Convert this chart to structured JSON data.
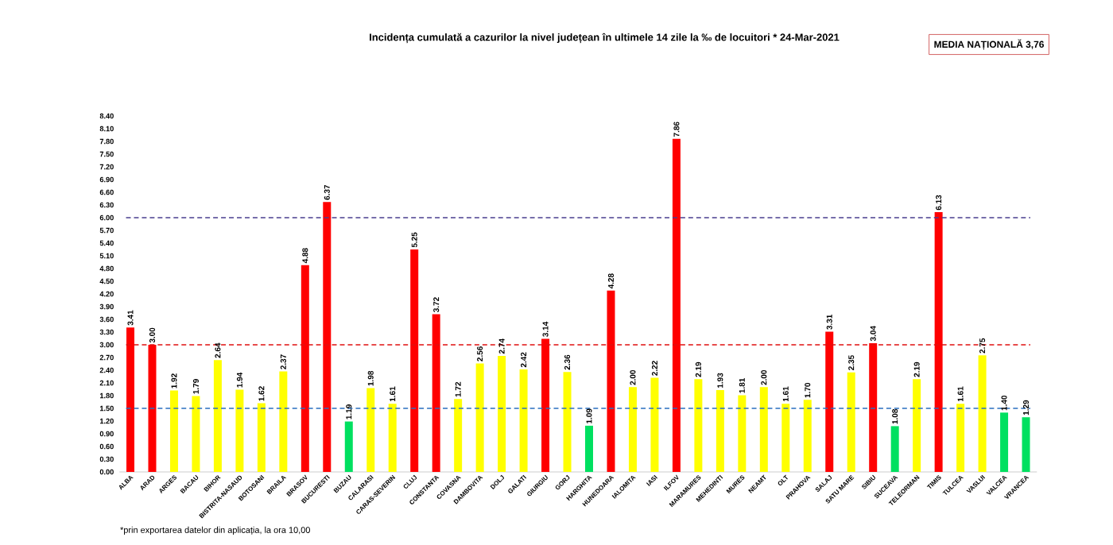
{
  "chart_data": {
    "type": "bar",
    "title": "Incidența cumulată a cazurilor la nivel județean în ultimele 14 zile la ‰ de locuitori *  24-Mar-2021",
    "categories": [
      "ALBA",
      "ARAD",
      "ARGES",
      "BACAU",
      "BIHOR",
      "BISTRITA-NASAUD",
      "BOTOSANI",
      "BRAILA",
      "BRASOV",
      "BUCURESTI",
      "BUZAU",
      "CALARASI",
      "CARAS-SEVERIN",
      "CLUJ",
      "CONSTANTA",
      "COVASNA",
      "DAMBOVITA",
      "DOLJ",
      "GALATI",
      "GIURGIU",
      "GORJ",
      "HARGHITA",
      "HUNEDOARA",
      "IALOMITA",
      "IASI",
      "ILFOV",
      "MARAMURES",
      "MEHEDINTI",
      "MURES",
      "NEAMT",
      "OLT",
      "PRAHOVA",
      "SALAJ",
      "SATU MARE",
      "SIBIU",
      "SUCEAVA",
      "TELEORMAN",
      "TIMIS",
      "TULCEA",
      "VASLUI",
      "VALCEA",
      "VRANCEA"
    ],
    "values": [
      3.41,
      3.0,
      1.92,
      1.79,
      2.64,
      1.94,
      1.62,
      2.37,
      4.88,
      6.37,
      1.19,
      1.98,
      1.61,
      5.25,
      3.72,
      1.72,
      2.56,
      2.74,
      2.42,
      3.14,
      2.36,
      1.09,
      4.28,
      2.0,
      2.22,
      7.86,
      2.19,
      1.93,
      1.81,
      2.0,
      1.61,
      1.7,
      3.31,
      2.35,
      3.04,
      1.08,
      2.19,
      6.13,
      1.61,
      2.75,
      1.4,
      1.29
    ],
    "value_labels": [
      "3.41",
      "3.00",
      "1.92",
      "1.79",
      "2.64",
      "1.94",
      "1.62",
      "2.37",
      "4.88",
      "6.37",
      "1.19",
      "1.98",
      "1.61",
      "5.25",
      "3.72",
      "1.72",
      "2.56",
      "2.74",
      "2.42",
      "3.14",
      "2.36",
      "1.09",
      "4.28",
      "2.00",
      "2.22",
      "7.86",
      "2.19",
      "1.93",
      "1.81",
      "2.00",
      "1.61",
      "1.70",
      "3.31",
      "2.35",
      "3.04",
      "1.08",
      "2.19",
      "6.13",
      "1.61",
      "2.75",
      "1.40",
      "1.29"
    ],
    "colors": [
      "#ff0000",
      "#ff0000",
      "#ffff00",
      "#ffff00",
      "#ffff00",
      "#ffff00",
      "#ffff00",
      "#ffff00",
      "#ff0000",
      "#ff0000",
      "#00e060",
      "#ffff00",
      "#ffff00",
      "#ff0000",
      "#ff0000",
      "#ffff00",
      "#ffff00",
      "#ffff00",
      "#ffff00",
      "#ff0000",
      "#ffff00",
      "#00e060",
      "#ff0000",
      "#ffff00",
      "#ffff00",
      "#ff0000",
      "#ffff00",
      "#ffff00",
      "#ffff00",
      "#ffff00",
      "#ffff00",
      "#ffff00",
      "#ff0000",
      "#ffff00",
      "#ff0000",
      "#00e060",
      "#ffff00",
      "#ff0000",
      "#ffff00",
      "#ffff00",
      "#00e060",
      "#00e060"
    ],
    "ylim": [
      0,
      8.4
    ],
    "yticks": [
      {
        "value": 0,
        "label": "0.00"
      },
      {
        "value": 0.3,
        "label": "0.30"
      },
      {
        "value": 0.6,
        "label": "0.60"
      },
      {
        "value": 0.9,
        "label": "0.90"
      },
      {
        "value": 1.2,
        "label": "1.20"
      },
      {
        "value": 1.5,
        "label": "1.50"
      },
      {
        "value": 1.8,
        "label": "1.80"
      },
      {
        "value": 2.1,
        "label": "2.10"
      },
      {
        "value": 2.4,
        "label": "2.40"
      },
      {
        "value": 2.7,
        "label": "2.70"
      },
      {
        "value": 3.0,
        "label": "3.00"
      },
      {
        "value": 3.3,
        "label": "3.30"
      },
      {
        "value": 3.6,
        "label": "3.60"
      },
      {
        "value": 3.9,
        "label": "3.90"
      },
      {
        "value": 4.2,
        "label": "4.20"
      },
      {
        "value": 4.5,
        "label": "4.50"
      },
      {
        "value": 4.8,
        "label": "4.80"
      },
      {
        "value": 5.1,
        "label": "5.10"
      },
      {
        "value": 5.4,
        "label": "5.40"
      },
      {
        "value": 5.7,
        "label": "5.70"
      },
      {
        "value": 6.0,
        "label": "6.00"
      },
      {
        "value": 6.3,
        "label": "6.30"
      },
      {
        "value": 6.6,
        "label": "6.60"
      },
      {
        "value": 6.9,
        "label": "6.90"
      },
      {
        "value": 7.2,
        "label": "7.20"
      },
      {
        "value": 7.5,
        "label": "7.50"
      },
      {
        "value": 7.8,
        "label": "7.80"
      },
      {
        "value": 8.1,
        "label": "8.10"
      },
      {
        "value": 8.4,
        "label": "8.40"
      }
    ],
    "ref_lines": [
      {
        "axis": "y",
        "value": 6.0,
        "color": "#4a3f8f",
        "line_style": "dashed"
      },
      {
        "axis": "y",
        "value": 3.0,
        "color": "#e01010",
        "line_style": "dashed"
      },
      {
        "axis": "y",
        "value": 1.5,
        "color": "#2a6fc0",
        "line_style": "dashed"
      }
    ],
    "annotations": [
      "MEDIA NAȚIONALĂ 3,76",
      "*prin exportarea datelor din aplicația, la ora 10,00"
    ],
    "grid": false
  }
}
